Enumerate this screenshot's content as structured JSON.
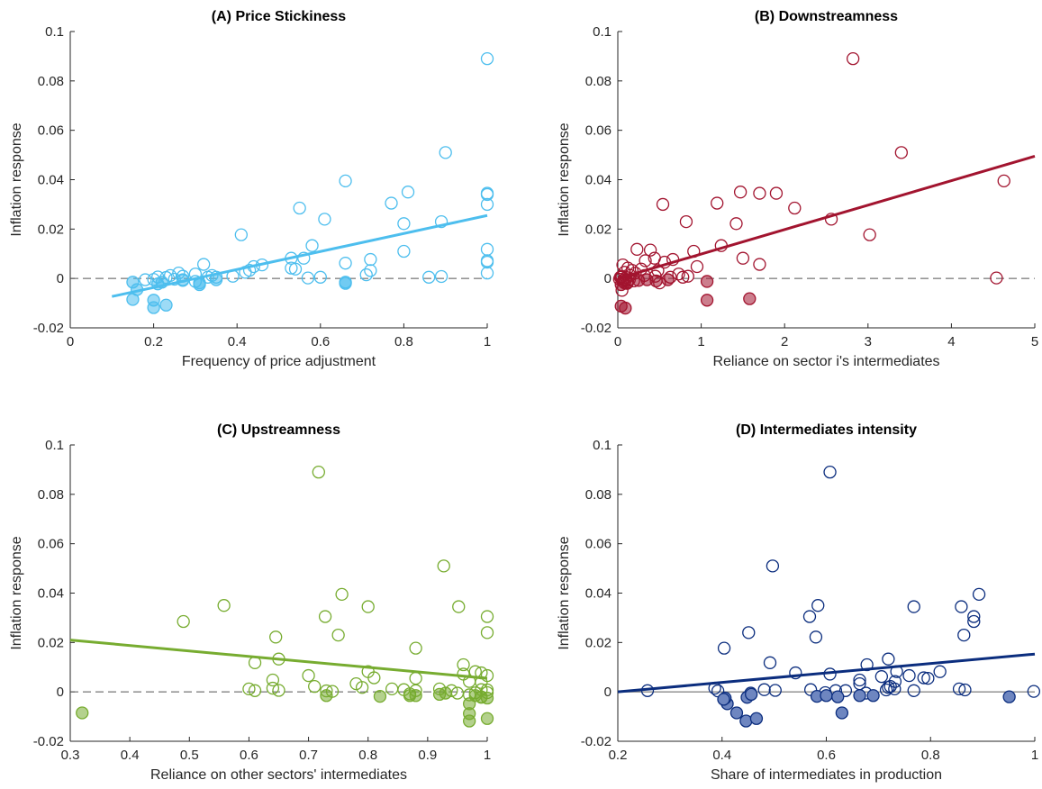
{
  "chart_data": [
    {
      "type": "scatter",
      "title": "(A) Price Stickiness",
      "xlabel": "Frequency of price adjustment",
      "ylabel": "Inflation response",
      "xlim": [
        0,
        1
      ],
      "ylim": [
        -0.02,
        0.1
      ],
      "xticks": [
        0,
        0.2,
        0.4,
        0.6,
        0.8,
        1
      ],
      "xtick_labels": [
        "0",
        "0.2",
        "0.4",
        "0.6",
        "0.8",
        "1"
      ],
      "yticks": [
        -0.02,
        0,
        0.02,
        0.04,
        0.06,
        0.08,
        0.1
      ],
      "ytick_labels": [
        "-0.02",
        "0",
        "0.02",
        "0.04",
        "0.06",
        "0.08",
        "0.1"
      ],
      "color": "#4DBEEE",
      "zero_line": "dashed",
      "fit_line": {
        "x": [
          0.1,
          1.0
        ],
        "y": [
          -0.0073,
          0.0255
        ]
      },
      "points_open": [
        [
          1.0,
          0.089
        ],
        [
          0.9,
          0.051
        ],
        [
          0.66,
          0.0395
        ],
        [
          0.81,
          0.035
        ],
        [
          1.0,
          0.0345
        ],
        [
          1.0,
          0.034
        ],
        [
          0.77,
          0.0305
        ],
        [
          1.0,
          0.03
        ],
        [
          0.55,
          0.0285
        ],
        [
          0.61,
          0.024
        ],
        [
          0.89,
          0.023
        ],
        [
          0.8,
          0.0222
        ],
        [
          0.41,
          0.0177
        ],
        [
          0.58,
          0.0133
        ],
        [
          1.0,
          0.0118
        ],
        [
          0.8,
          0.011
        ],
        [
          0.53,
          0.0082
        ],
        [
          0.56,
          0.0082
        ],
        [
          0.72,
          0.0077
        ],
        [
          1.0,
          0.0072
        ],
        [
          1.0,
          0.0066
        ],
        [
          0.66,
          0.0062
        ],
        [
          0.32,
          0.0057
        ],
        [
          0.46,
          0.0055
        ],
        [
          0.44,
          0.0048
        ],
        [
          0.53,
          0.0042
        ],
        [
          0.54,
          0.0038
        ],
        [
          0.43,
          0.0033
        ],
        [
          0.72,
          0.0032
        ],
        [
          0.42,
          0.0025
        ],
        [
          0.71,
          0.0015
        ],
        [
          0.26,
          0.0022
        ],
        [
          0.3,
          0.0018
        ],
        [
          1.0,
          0.0022
        ],
        [
          0.34,
          0.0012
        ],
        [
          0.21,
          0.0006
        ],
        [
          0.23,
          0.0004
        ],
        [
          0.24,
          0.0012
        ],
        [
          0.27,
          0.0009
        ],
        [
          0.39,
          0.0009
        ],
        [
          0.33,
          0.0005
        ],
        [
          0.35,
          0.0005
        ],
        [
          0.6,
          0.0005
        ],
        [
          0.86,
          0.0005
        ],
        [
          0.57,
          0.0002
        ],
        [
          0.89,
          0.0008
        ],
        [
          0.18,
          -0.0005
        ],
        [
          0.2,
          -0.0004
        ],
        [
          0.25,
          -0.0003
        ],
        [
          0.27,
          -0.0008
        ],
        [
          0.3,
          -0.0012
        ]
      ],
      "points_filled": [
        [
          0.15,
          -0.0015
        ],
        [
          0.15,
          -0.0085
        ],
        [
          0.16,
          -0.0045
        ],
        [
          0.2,
          -0.0088
        ],
        [
          0.2,
          -0.0118
        ],
        [
          0.23,
          -0.0108
        ],
        [
          0.21,
          -0.0022
        ],
        [
          0.22,
          -0.0015
        ],
        [
          0.27,
          -0.0005
        ],
        [
          0.31,
          -0.0025
        ],
        [
          0.31,
          -0.0018
        ],
        [
          0.35,
          -0.0005
        ],
        [
          0.66,
          -0.0015
        ],
        [
          0.66,
          -0.002
        ]
      ]
    },
    {
      "type": "scatter",
      "title": "(B) Downstreamness",
      "xlabel": "Reliance on sector i's intermediates",
      "ylabel": "Inflation response",
      "xlim": [
        0,
        5
      ],
      "ylim": [
        -0.02,
        0.1
      ],
      "xticks": [
        0,
        1,
        2,
        3,
        4,
        5
      ],
      "xtick_labels": [
        "0",
        "1",
        "2",
        "3",
        "4",
        "5"
      ],
      "yticks": [
        -0.02,
        0,
        0.02,
        0.04,
        0.06,
        0.08,
        0.1
      ],
      "ytick_labels": [
        "-0.02",
        "0",
        "0.02",
        "0.04",
        "0.06",
        "0.08",
        "0.1"
      ],
      "color": "#A2142F",
      "zero_line": "dashed",
      "fit_line": {
        "x": [
          0.0,
          5.0
        ],
        "y": [
          0.0,
          0.0495
        ]
      },
      "points_open": [
        [
          2.82,
          0.089
        ],
        [
          3.4,
          0.051
        ],
        [
          4.63,
          0.0395
        ],
        [
          1.47,
          0.035
        ],
        [
          1.7,
          0.0345
        ],
        [
          1.9,
          0.0345
        ],
        [
          1.19,
          0.0305
        ],
        [
          0.54,
          0.03
        ],
        [
          2.12,
          0.0285
        ],
        [
          2.56,
          0.024
        ],
        [
          0.82,
          0.023
        ],
        [
          1.42,
          0.0222
        ],
        [
          3.02,
          0.0177
        ],
        [
          1.24,
          0.0133
        ],
        [
          0.23,
          0.0118
        ],
        [
          0.91,
          0.011
        ],
        [
          0.39,
          0.0115
        ],
        [
          0.44,
          0.0082
        ],
        [
          0.66,
          0.0077
        ],
        [
          0.33,
          0.0072
        ],
        [
          0.56,
          0.0066
        ],
        [
          1.5,
          0.0082
        ],
        [
          1.7,
          0.0057
        ],
        [
          0.95,
          0.0048
        ],
        [
          0.06,
          0.0055
        ],
        [
          0.12,
          0.0042
        ],
        [
          0.28,
          0.0038
        ],
        [
          0.17,
          0.0033
        ],
        [
          0.48,
          0.0032
        ],
        [
          0.08,
          0.0025
        ],
        [
          0.21,
          0.0022
        ],
        [
          0.73,
          0.0018
        ],
        [
          0.32,
          0.0012
        ],
        [
          0.04,
          0.0006
        ],
        [
          0.1,
          0.0004
        ],
        [
          0.15,
          0.0012
        ],
        [
          0.45,
          0.0009
        ],
        [
          0.84,
          0.0009
        ],
        [
          0.03,
          0.0005
        ],
        [
          0.05,
          0.0008
        ],
        [
          0.63,
          0.0005
        ],
        [
          0.78,
          0.0005
        ],
        [
          4.54,
          0.0002
        ],
        [
          0.07,
          -0.0005
        ],
        [
          0.14,
          -0.0004
        ],
        [
          0.02,
          -0.0003
        ],
        [
          0.09,
          -0.0008
        ],
        [
          0.06,
          -0.0012
        ],
        [
          0.11,
          -0.002
        ],
        [
          0.05,
          -0.0048
        ],
        [
          0.19,
          -0.001
        ],
        [
          0.5,
          -0.0018
        ]
      ],
      "points_filled": [
        [
          0.04,
          -0.0112
        ],
        [
          0.09,
          -0.012
        ],
        [
          1.58,
          -0.0082
        ],
        [
          1.07,
          -0.0088
        ],
        [
          1.07,
          -0.0012
        ],
        [
          0.08,
          -0.0018
        ],
        [
          0.04,
          -0.0025
        ],
        [
          0.35,
          -0.0005
        ],
        [
          0.46,
          -0.001
        ],
        [
          0.6,
          -0.0005
        ],
        [
          0.25,
          -0.0008
        ],
        [
          0.12,
          -0.0015
        ]
      ]
    },
    {
      "type": "scatter",
      "title": "(C) Upstreamness",
      "xlabel": "Reliance on other sectors' intermediates",
      "ylabel": "Inflation response",
      "xlim": [
        0.3,
        1
      ],
      "ylim": [
        -0.02,
        0.1
      ],
      "xticks": [
        0.3,
        0.4,
        0.5,
        0.6,
        0.7,
        0.8,
        0.9,
        1
      ],
      "xtick_labels": [
        "0.3",
        "0.4",
        "0.5",
        "0.6",
        "0.7",
        "0.8",
        "0.9",
        "1"
      ],
      "yticks": [
        -0.02,
        0,
        0.02,
        0.04,
        0.06,
        0.08,
        0.1
      ],
      "ytick_labels": [
        "-0.02",
        "0",
        "0.02",
        "0.04",
        "0.06",
        "0.08",
        "0.1"
      ],
      "color": "#77AC30",
      "zero_line": "dashed",
      "fit_line": {
        "x": [
          0.3,
          1.0
        ],
        "y": [
          0.021,
          0.0055
        ]
      },
      "points_open": [
        [
          0.717,
          0.089
        ],
        [
          0.927,
          0.051
        ],
        [
          0.756,
          0.0395
        ],
        [
          0.558,
          0.035
        ],
        [
          0.952,
          0.0345
        ],
        [
          0.8,
          0.0345
        ],
        [
          0.728,
          0.0305
        ],
        [
          1.0,
          0.0305
        ],
        [
          0.49,
          0.0285
        ],
        [
          1.0,
          0.024
        ],
        [
          0.75,
          0.023
        ],
        [
          0.645,
          0.0222
        ],
        [
          0.88,
          0.0177
        ],
        [
          0.65,
          0.0133
        ],
        [
          0.96,
          0.011
        ],
        [
          0.61,
          0.0118
        ],
        [
          0.98,
          0.0082
        ],
        [
          0.8,
          0.0082
        ],
        [
          0.99,
          0.0077
        ],
        [
          0.96,
          0.0072
        ],
        [
          0.7,
          0.0066
        ],
        [
          1.0,
          0.0066
        ],
        [
          0.81,
          0.0057
        ],
        [
          0.88,
          0.0055
        ],
        [
          0.64,
          0.0048
        ],
        [
          0.97,
          0.0042
        ],
        [
          0.99,
          0.0038
        ],
        [
          0.78,
          0.0033
        ],
        [
          0.84,
          0.0012
        ],
        [
          0.64,
          0.0015
        ],
        [
          0.71,
          0.0022
        ],
        [
          0.79,
          0.0018
        ],
        [
          0.92,
          0.0012
        ],
        [
          0.6,
          0.0012
        ],
        [
          0.65,
          0.0006
        ],
        [
          0.73,
          0.0004
        ],
        [
          0.86,
          0.0009
        ],
        [
          0.99,
          0.0009
        ],
        [
          0.61,
          0.0005
        ],
        [
          0.88,
          0.0005
        ],
        [
          0.94,
          0.0005
        ],
        [
          0.74,
          0.0002
        ],
        [
          1.0,
          0.0008
        ],
        [
          0.95,
          -0.0005
        ],
        [
          0.98,
          -0.0004
        ],
        [
          1.0,
          -0.0003
        ],
        [
          0.87,
          -0.0008
        ],
        [
          0.97,
          -0.0012
        ],
        [
          0.99,
          -0.002
        ]
      ],
      "points_filled": [
        [
          0.32,
          -0.0085
        ],
        [
          0.97,
          -0.0118
        ],
        [
          0.97,
          -0.0088
        ],
        [
          1.0,
          -0.0108
        ],
        [
          0.97,
          -0.0048
        ],
        [
          0.73,
          -0.0015
        ],
        [
          0.82,
          -0.0018
        ],
        [
          0.87,
          -0.0015
        ],
        [
          0.88,
          -0.0015
        ],
        [
          0.93,
          -0.0005
        ],
        [
          0.99,
          -0.0022
        ],
        [
          1.0,
          -0.0025
        ],
        [
          0.98,
          -0.0015
        ],
        [
          0.92,
          -0.001
        ]
      ]
    },
    {
      "type": "scatter",
      "title": "(D) Intermediates intensity",
      "xlabel": "Share of intermediates in production",
      "ylabel": "Inflation response",
      "xlim": [
        0.2,
        1
      ],
      "ylim": [
        -0.02,
        0.1
      ],
      "xticks": [
        0.2,
        0.4,
        0.6,
        0.8,
        1
      ],
      "xtick_labels": [
        "0.2",
        "0.4",
        "0.6",
        "0.8",
        "1"
      ],
      "yticks": [
        -0.02,
        0,
        0.02,
        0.04,
        0.06,
        0.08,
        0.1
      ],
      "ytick_labels": [
        "-0.02",
        "0",
        "0.02",
        "0.04",
        "0.06",
        "0.08",
        "0.1"
      ],
      "color": "#0B2D7E",
      "fill_color": "#6E86C0",
      "zero_line": "solid",
      "fit_line": {
        "x": [
          0.2,
          1.0
        ],
        "y": [
          0.0,
          0.0153
        ]
      },
      "points_open": [
        [
          0.607,
          0.089
        ],
        [
          0.497,
          0.051
        ],
        [
          0.893,
          0.0395
        ],
        [
          0.584,
          0.035
        ],
        [
          0.859,
          0.0345
        ],
        [
          0.768,
          0.0345
        ],
        [
          0.568,
          0.0305
        ],
        [
          0.883,
          0.0305
        ],
        [
          0.883,
          0.0285
        ],
        [
          0.451,
          0.024
        ],
        [
          0.864,
          0.023
        ],
        [
          0.58,
          0.0222
        ],
        [
          0.404,
          0.0177
        ],
        [
          0.719,
          0.0133
        ],
        [
          0.492,
          0.0118
        ],
        [
          0.678,
          0.011
        ],
        [
          0.607,
          0.0072
        ],
        [
          0.818,
          0.0082
        ],
        [
          0.541,
          0.0077
        ],
        [
          0.759,
          0.0066
        ],
        [
          0.706,
          0.0062
        ],
        [
          0.735,
          0.0082
        ],
        [
          0.787,
          0.0057
        ],
        [
          0.795,
          0.0055
        ],
        [
          0.664,
          0.0048
        ],
        [
          0.732,
          0.0042
        ],
        [
          0.664,
          0.0033
        ],
        [
          0.723,
          0.0022
        ],
        [
          0.855,
          0.0012
        ],
        [
          0.386,
          0.0015
        ],
        [
          0.719,
          0.0018
        ],
        [
          0.731,
          0.0012
        ],
        [
          0.481,
          0.0009
        ],
        [
          0.502,
          0.0006
        ],
        [
          0.618,
          0.0005
        ],
        [
          0.768,
          0.0005
        ],
        [
          0.257,
          0.0005
        ],
        [
          0.866,
          0.0008
        ],
        [
          0.998,
          0.0002
        ],
        [
          0.637,
          0.0005
        ],
        [
          0.57,
          0.0009
        ],
        [
          0.715,
          0.0008
        ],
        [
          0.392,
          0.0004
        ],
        [
          0.455,
          -0.0005
        ],
        [
          0.598,
          -0.0003
        ],
        [
          0.676,
          -0.0005
        ]
      ],
      "points_filled": [
        [
          0.428,
          -0.0085
        ],
        [
          0.446,
          -0.0118
        ],
        [
          0.466,
          -0.0108
        ],
        [
          0.63,
          -0.0085
        ],
        [
          0.41,
          -0.0048
        ],
        [
          0.406,
          -0.0025
        ],
        [
          0.448,
          -0.0022
        ],
        [
          0.456,
          -0.001
        ],
        [
          0.582,
          -0.0018
        ],
        [
          0.6,
          -0.0015
        ],
        [
          0.622,
          -0.002
        ],
        [
          0.664,
          -0.0015
        ],
        [
          0.69,
          -0.0015
        ],
        [
          0.951,
          -0.002
        ],
        [
          0.403,
          -0.003
        ]
      ]
    }
  ]
}
